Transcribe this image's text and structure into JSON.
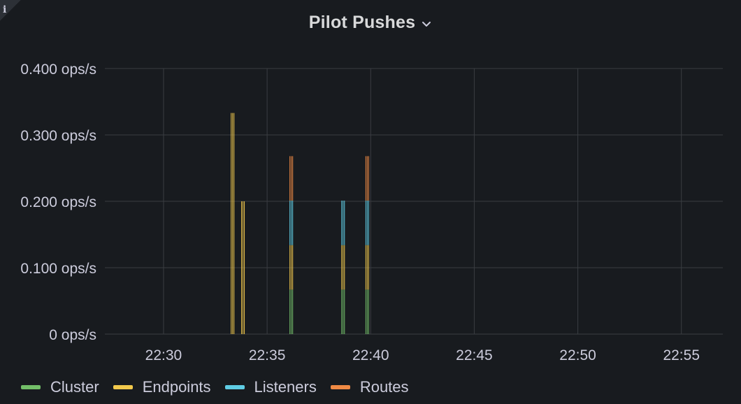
{
  "panel": {
    "title": "Pilot Pushes",
    "info_icon": "info-icon",
    "menu_icon": "chevron-down-icon"
  },
  "colors": {
    "background": "#181b1f",
    "grid": "#3a3d42",
    "text": "#ccccdc",
    "Cluster": "#73bf69",
    "Endpoints": "#f2c94c",
    "Listeners": "#5fcde4",
    "Routes": "#f08a44"
  },
  "chart_data": {
    "type": "bar",
    "stacked": true,
    "title": "Pilot Pushes",
    "xlabel": "",
    "ylabel": "",
    "unit": "ops/s",
    "x_ticks": [
      "22:30",
      "22:35",
      "22:40",
      "22:45",
      "22:50",
      "22:55"
    ],
    "x_range": [
      "22:27:10",
      "22:57:00"
    ],
    "y_ticks": [
      "0 ops/s",
      "0.100 ops/s",
      "0.200 ops/s",
      "0.300 ops/s",
      "0.400 ops/s"
    ],
    "ylim": [
      0,
      0.4
    ],
    "grid": true,
    "legend_position": "bottom-left",
    "x": [
      "22:33:20",
      "22:33:50",
      "22:36:10",
      "22:38:40",
      "22:39:50"
    ],
    "series": [
      {
        "name": "Cluster",
        "values": [
          0,
          0,
          0.067,
          0.067,
          0.067
        ]
      },
      {
        "name": "Endpoints",
        "values": [
          0.333,
          0.2,
          0.067,
          0.067,
          0.067
        ]
      },
      {
        "name": "Listeners",
        "values": [
          0,
          0,
          0.067,
          0.067,
          0.067
        ]
      },
      {
        "name": "Routes",
        "values": [
          0,
          0,
          0.067,
          0,
          0.067
        ]
      }
    ]
  }
}
